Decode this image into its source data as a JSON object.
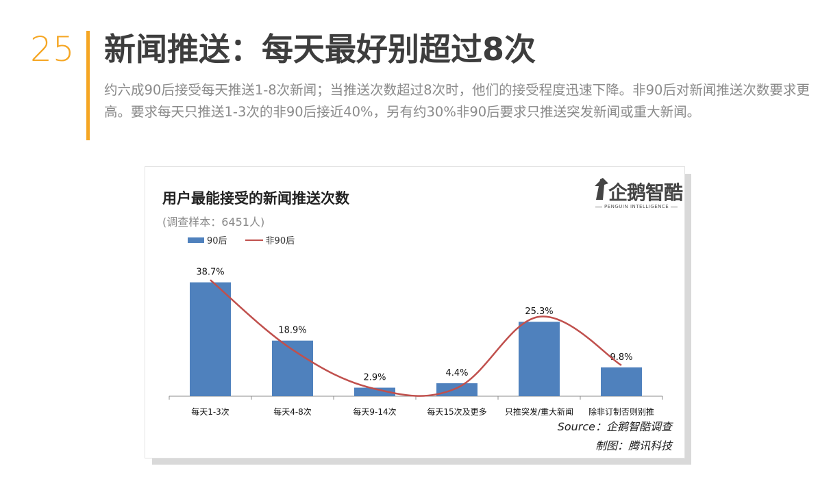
{
  "slide": {
    "number": "25",
    "headline": "新闻推送：每天最好别超过8次",
    "summary": "约六成90后接受每天推送1-8次新闻；当推送次数超过8次时，他们的接受程度迅速下降。非90后对新闻推送次数要求更高。要求每天只推送1-3次的非90后接近40%，另有约30%非90后要求只推送突发新闻或重大新闻。"
  },
  "logo": {
    "name": "企鹅智酷",
    "tagline": "PENGUIN INTELLIGENCE"
  },
  "footer": {
    "source": "Source：企鹅智酷调查",
    "credit": "制图：腾讯科技"
  },
  "colors": {
    "accent": "#f5a623",
    "bar": "#4f81bd",
    "line": "#c0504d"
  },
  "chart_data": {
    "type": "bar",
    "title": "用户最能接受的新闻推送次数",
    "subtitle": "(调查样本：6451人)",
    "categories": [
      "每天1-3次",
      "每天4-8次",
      "每天9-14次",
      "每天15次及更多",
      "只推突发/重大新闻",
      "除非订制否则别推"
    ],
    "series": [
      {
        "name": "90后",
        "type": "bar",
        "values": [
          38.7,
          18.9,
          2.9,
          4.4,
          25.3,
          9.8
        ],
        "labels": [
          "38.7%",
          "18.9%",
          "2.9%",
          "4.4%",
          "25.3%",
          "9.8%"
        ]
      },
      {
        "name": "非90后",
        "type": "line",
        "values": [
          39.5,
          15.8,
          2.5,
          2.8,
          27.0,
          10.5
        ]
      }
    ],
    "ylim": [
      0,
      45
    ],
    "grid": false,
    "legend_position": "top-left"
  }
}
